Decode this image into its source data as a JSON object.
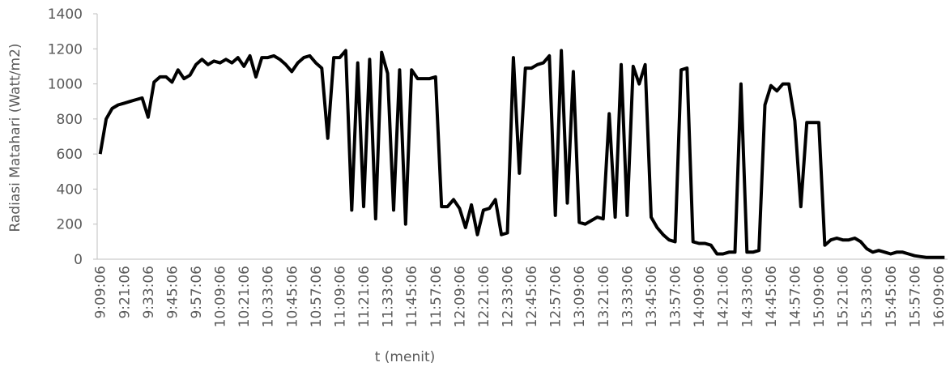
{
  "chart_data": {
    "type": "line",
    "x_label": "t (menit)",
    "y_label": "Radiasi Matahari (Watt/m2)",
    "categories": [
      "9:09:06",
      null,
      null,
      null,
      "9:21:06",
      null,
      null,
      null,
      "9:33:06",
      null,
      null,
      null,
      "9:45:06",
      null,
      null,
      null,
      "9:57:06",
      null,
      null,
      null,
      "10:09:06",
      null,
      null,
      null,
      "10:21:06",
      null,
      null,
      null,
      "10:33:06",
      null,
      null,
      null,
      "10:45:06",
      null,
      null,
      null,
      "10:57:06",
      null,
      null,
      null,
      "11:09:06",
      null,
      null,
      null,
      "11:21:06",
      null,
      null,
      null,
      "11:33:06",
      null,
      null,
      null,
      "11:45:06",
      null,
      null,
      null,
      "11:57:06",
      null,
      null,
      null,
      "12:09:06",
      null,
      null,
      null,
      "12:21:06",
      null,
      null,
      null,
      "12:33:06",
      null,
      null,
      null,
      "12:45:06",
      null,
      null,
      null,
      "12:57:06",
      null,
      null,
      null,
      "13:09:06",
      null,
      null,
      null,
      "13:21:06",
      null,
      null,
      null,
      "13:33:06",
      null,
      null,
      null,
      "13:45:06",
      null,
      null,
      null,
      "13:57:06",
      null,
      null,
      null,
      "14:09:06",
      null,
      null,
      null,
      "14:21:06",
      null,
      null,
      null,
      "14:33:06",
      null,
      null,
      null,
      "14:45:06",
      null,
      null,
      null,
      "14:57:06",
      null,
      null,
      null,
      "15:09:06",
      null,
      null,
      null,
      "15:21:06",
      null,
      null,
      null,
      "15:33:06",
      null,
      null,
      null,
      "15:45:06",
      null,
      null,
      null,
      "15:57:06",
      null,
      null,
      null,
      "16:09:06",
      null
    ],
    "series": [
      {
        "color": "#000000",
        "values": [
          600,
          800,
          860,
          880,
          890,
          900,
          910,
          920,
          810,
          1010,
          1040,
          1040,
          1010,
          1080,
          1030,
          1050,
          1110,
          1140,
          1110,
          1130,
          1120,
          1140,
          1120,
          1150,
          1100,
          1160,
          1040,
          1150,
          1150,
          1160,
          1140,
          1110,
          1070,
          1120,
          1150,
          1160,
          1120,
          1090,
          690,
          1150,
          1150,
          1190,
          280,
          1120,
          300,
          1140,
          230,
          1180,
          1060,
          280,
          1080,
          200,
          1080,
          1030,
          1030,
          1030,
          1040,
          300,
          300,
          340,
          290,
          180,
          310,
          140,
          280,
          290,
          340,
          140,
          150,
          1150,
          490,
          1090,
          1090,
          1110,
          1120,
          1160,
          250,
          1190,
          320,
          1070,
          210,
          200,
          220,
          240,
          230,
          830,
          240,
          1110,
          250,
          1100,
          1000,
          1110,
          240,
          180,
          140,
          110,
          100,
          1080,
          1090,
          100,
          90,
          90,
          80,
          30,
          30,
          40,
          40,
          1000,
          40,
          40,
          50,
          880,
          990,
          960,
          1000,
          1000,
          790,
          300,
          780,
          780,
          780,
          80,
          110,
          120,
          110,
          110,
          120,
          100,
          60,
          40,
          50,
          40,
          30,
          40,
          40,
          30,
          20,
          15,
          10,
          10,
          10,
          10
        ]
      }
    ],
    "ylim": [
      0,
      1400
    ],
    "yticks": [
      0,
      200,
      400,
      600,
      800,
      1000,
      1200,
      1400
    ],
    "grid": false
  }
}
